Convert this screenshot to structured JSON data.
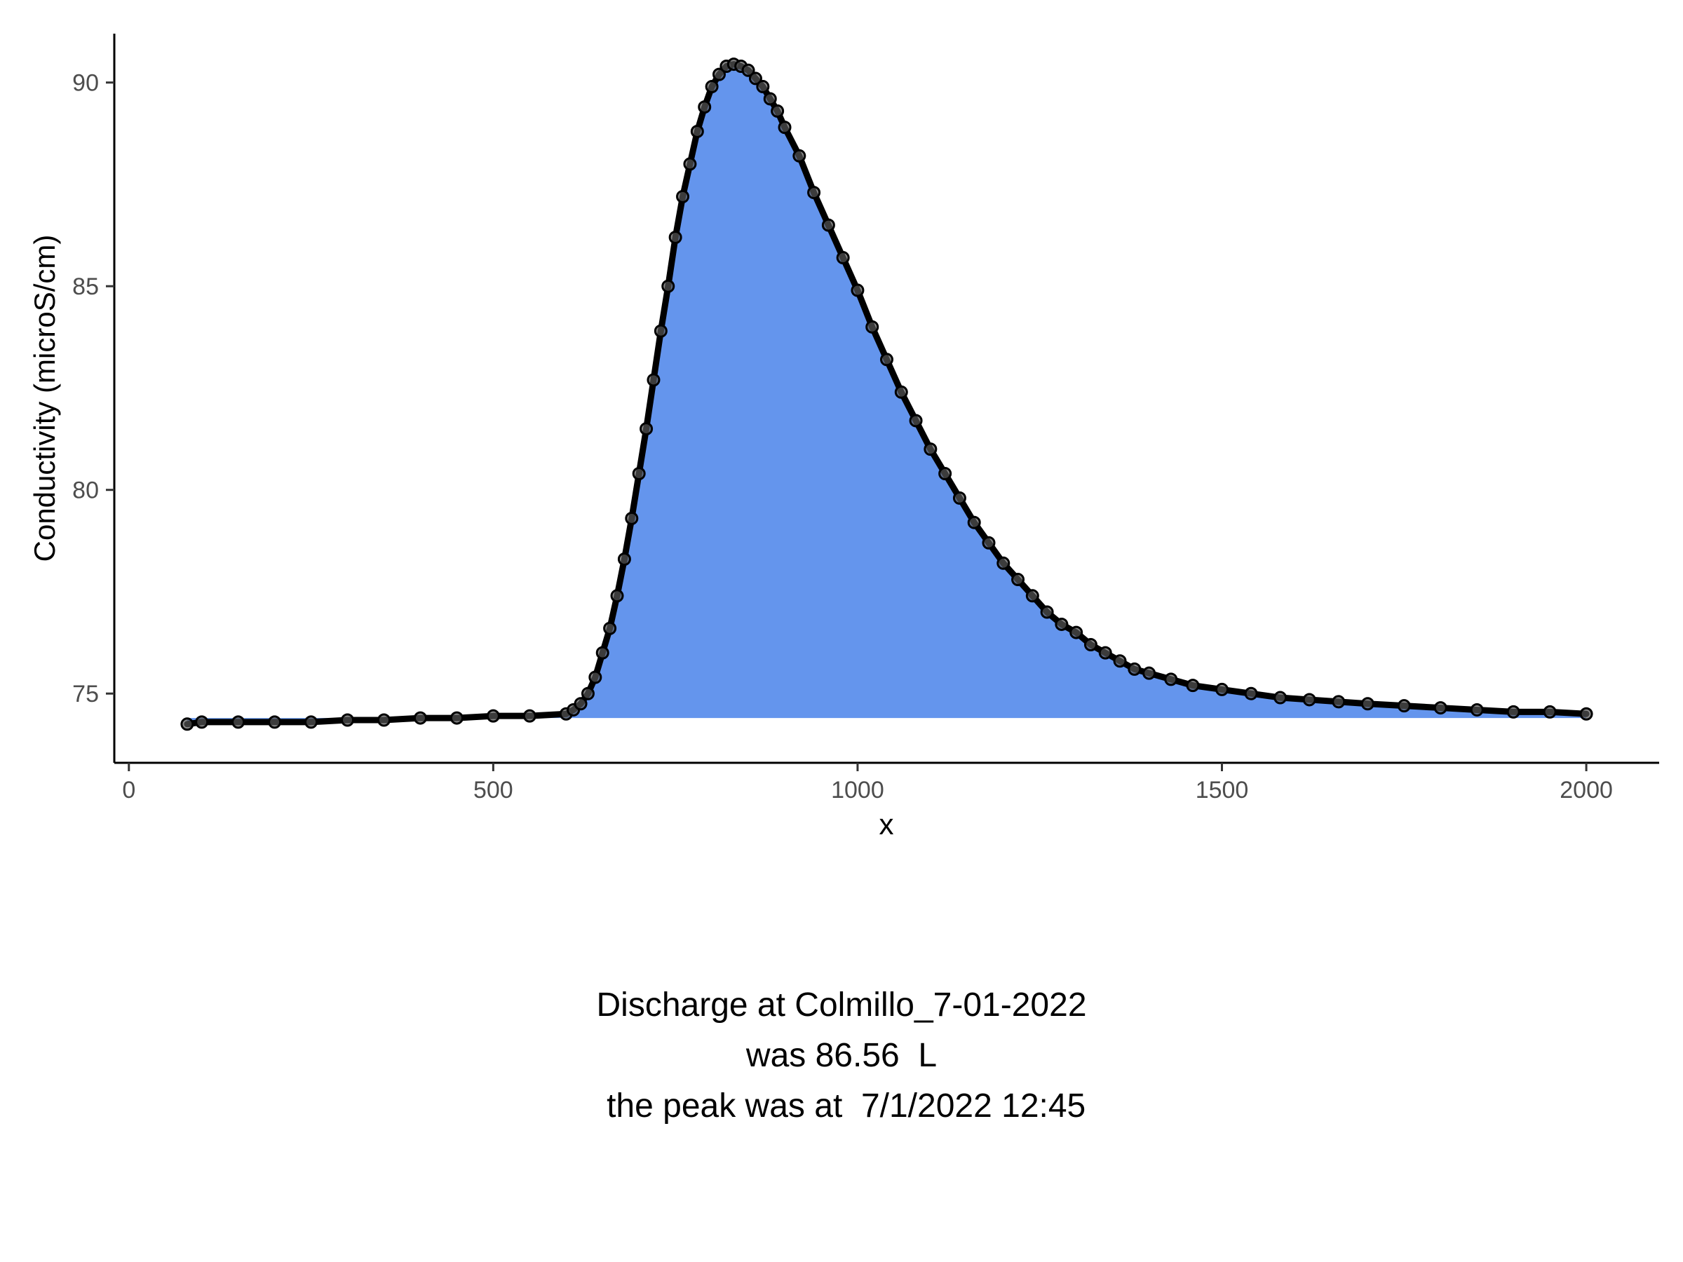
{
  "chart_data": {
    "type": "area",
    "xlabel": "x",
    "ylabel": "Conductivity (microS/cm)",
    "xlim": [
      -20,
      2100
    ],
    "ylim": [
      73.3,
      91.2
    ],
    "x_ticks": [
      0,
      500,
      1000,
      1500,
      2000
    ],
    "y_ticks": [
      75,
      80,
      85,
      90
    ],
    "baseline": 74.4,
    "grid": false,
    "legend": "none",
    "fill_color": "#6495ED",
    "point_color": "#000000",
    "series": [
      {
        "x": [
          80,
          100,
          150,
          200,
          250,
          300,
          350,
          400,
          450,
          500,
          550,
          600,
          610,
          620,
          630,
          640,
          650,
          660,
          670,
          680,
          690,
          700,
          710,
          720,
          730,
          740,
          750,
          760,
          770,
          780,
          790,
          800,
          810,
          820,
          830,
          840,
          850,
          860,
          870,
          880,
          890,
          900,
          920,
          940,
          960,
          980,
          1000,
          1020,
          1040,
          1060,
          1080,
          1100,
          1120,
          1140,
          1160,
          1180,
          1200,
          1220,
          1240,
          1260,
          1280,
          1300,
          1320,
          1340,
          1360,
          1380,
          1400,
          1430,
          1460,
          1500,
          1540,
          1580,
          1620,
          1660,
          1700,
          1750,
          1800,
          1850,
          1900,
          1950,
          2000
        ],
        "y": [
          74.25,
          74.3,
          74.3,
          74.3,
          74.3,
          74.35,
          74.35,
          74.4,
          74.4,
          74.45,
          74.45,
          74.5,
          74.6,
          74.75,
          75.0,
          75.4,
          76.0,
          76.6,
          77.4,
          78.3,
          79.3,
          80.4,
          81.5,
          82.7,
          83.9,
          85.0,
          86.2,
          87.2,
          88.0,
          88.8,
          89.4,
          89.9,
          90.2,
          90.4,
          90.45,
          90.4,
          90.3,
          90.1,
          89.9,
          89.6,
          89.3,
          88.9,
          88.2,
          87.3,
          86.5,
          85.7,
          84.9,
          84.0,
          83.2,
          82.4,
          81.7,
          81.0,
          80.4,
          79.8,
          79.2,
          78.7,
          78.2,
          77.8,
          77.4,
          77.0,
          76.7,
          76.5,
          76.2,
          76.0,
          75.8,
          75.6,
          75.5,
          75.35,
          75.2,
          75.1,
          75.0,
          74.9,
          74.85,
          74.8,
          74.75,
          74.7,
          74.65,
          74.6,
          74.55,
          74.55,
          74.5
        ]
      }
    ]
  },
  "caption": {
    "line1": "Discharge at Colmillo_7-01-2022",
    "line2": "was 86.56  L",
    "line3": " the peak was at  7/1/2022 12:45"
  }
}
